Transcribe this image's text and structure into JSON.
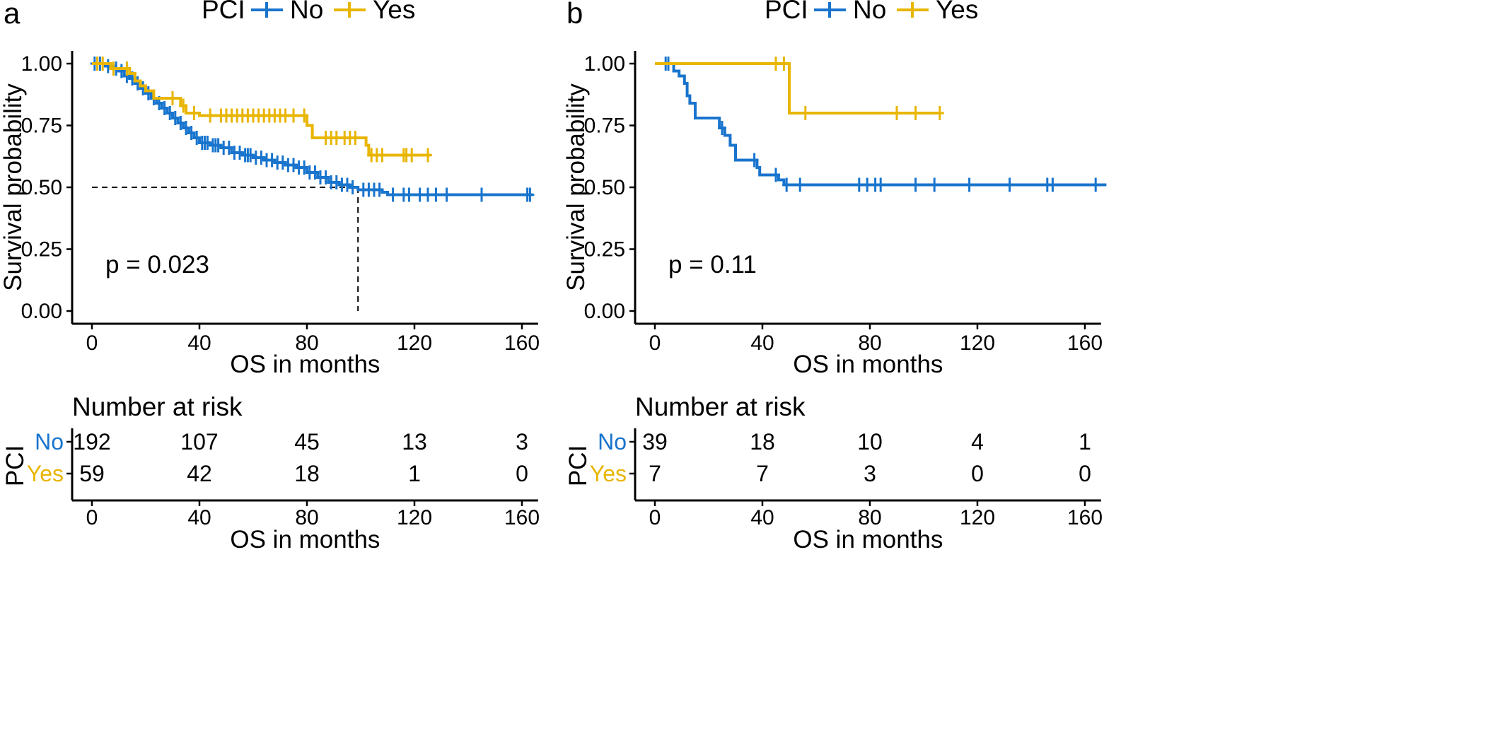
{
  "colors": {
    "No": "#1874CD",
    "Yes": "#E8B500"
  },
  "panels": [
    {
      "letter": "a",
      "legend": {
        "title": "PCI",
        "labels": [
          "No",
          "Yes"
        ]
      },
      "pvalue_text": "p = 0.023",
      "risk_table": {
        "title": "Number at risk",
        "strata_axis_label": "PCI",
        "strata": [
          "No",
          "Yes"
        ],
        "times": [
          0,
          40,
          80,
          120,
          160
        ],
        "counts": {
          "No": [
            "192",
            "107",
            "45",
            "13",
            "3"
          ],
          "Yes": [
            "59",
            "42",
            "18",
            "1",
            "0"
          ]
        },
        "x_ticks": [
          "0",
          "40",
          "80",
          "120",
          "160"
        ],
        "xlabel": "OS in months"
      }
    },
    {
      "letter": "b",
      "legend": {
        "title": "PCI",
        "labels": [
          "No",
          "Yes"
        ]
      },
      "pvalue_text": "p = 0.11",
      "risk_table": {
        "title": "Number at risk",
        "strata_axis_label": "PCI",
        "strata": [
          "No",
          "Yes"
        ],
        "times": [
          0,
          40,
          80,
          120,
          160
        ],
        "counts": {
          "No": [
            "39",
            "18",
            "10",
            "4",
            "1"
          ],
          "Yes": [
            "7",
            "7",
            "3",
            "0",
            "0"
          ]
        },
        "x_ticks": [
          "0",
          "40",
          "80",
          "120",
          "160"
        ],
        "xlabel": "OS in months"
      }
    }
  ],
  "chart_data": [
    {
      "type": "line",
      "xlabel": "OS in months",
      "ylabel": "Survival probability",
      "xlim": [
        -8,
        166
      ],
      "ylim": [
        -0.05,
        1.05
      ],
      "x_ticks": [
        0,
        40,
        80,
        120,
        160
      ],
      "y_ticks": [
        0,
        0.25,
        0.5,
        0.75,
        1.0
      ],
      "y_tick_labels": [
        "0.00",
        "0.25",
        "0.50",
        "0.75",
        "1.00"
      ],
      "x_tick_labels": [
        "0",
        "40",
        "80",
        "120",
        "160"
      ],
      "median_line": {
        "x": 99,
        "y": 0.5
      },
      "series": [
        {
          "name": "No",
          "color": "#1874CD",
          "steps": [
            [
              0,
              1.0
            ],
            [
              5,
              0.99
            ],
            [
              8,
              0.98
            ],
            [
              10,
              0.97
            ],
            [
              12,
              0.95
            ],
            [
              14,
              0.94
            ],
            [
              16,
              0.92
            ],
            [
              18,
              0.9
            ],
            [
              20,
              0.88
            ],
            [
              22,
              0.86
            ],
            [
              24,
              0.84
            ],
            [
              26,
              0.82
            ],
            [
              28,
              0.8
            ],
            [
              30,
              0.78
            ],
            [
              32,
              0.76
            ],
            [
              34,
              0.74
            ],
            [
              36,
              0.72
            ],
            [
              38,
              0.7
            ],
            [
              40,
              0.68
            ],
            [
              44,
              0.67
            ],
            [
              48,
              0.66
            ],
            [
              52,
              0.64
            ],
            [
              56,
              0.63
            ],
            [
              60,
              0.62
            ],
            [
              64,
              0.61
            ],
            [
              68,
              0.6
            ],
            [
              72,
              0.59
            ],
            [
              76,
              0.58
            ],
            [
              80,
              0.56
            ],
            [
              84,
              0.54
            ],
            [
              88,
              0.52
            ],
            [
              92,
              0.51
            ],
            [
              96,
              0.5
            ],
            [
              99,
              0.49
            ],
            [
              108,
              0.48
            ],
            [
              110,
              0.47
            ],
            [
              164,
              0.47
            ]
          ],
          "censor_x": [
            1,
            3,
            6,
            9,
            11,
            13,
            15,
            17,
            19,
            21,
            23,
            25,
            27,
            29,
            31,
            33,
            35,
            37,
            39,
            41,
            42,
            43,
            45,
            46,
            47,
            49,
            51,
            53,
            55,
            57,
            58,
            59,
            61,
            63,
            65,
            67,
            69,
            71,
            73,
            75,
            77,
            79,
            81,
            83,
            85,
            87,
            89,
            91,
            93,
            95,
            97,
            101,
            103,
            105,
            107,
            112,
            116,
            118,
            122,
            125,
            128,
            132,
            145,
            162,
            163
          ]
        },
        {
          "name": "Yes",
          "color": "#E8B500",
          "steps": [
            [
              0,
              1.0
            ],
            [
              7,
              0.98
            ],
            [
              14,
              0.96
            ],
            [
              16,
              0.93
            ],
            [
              18,
              0.91
            ],
            [
              20,
              0.89
            ],
            [
              23,
              0.86
            ],
            [
              33,
              0.83
            ],
            [
              35,
              0.8
            ],
            [
              40,
              0.79
            ],
            [
              80,
              0.75
            ],
            [
              82,
              0.7
            ],
            [
              102,
              0.67
            ],
            [
              103,
              0.63
            ],
            [
              126,
              0.63
            ]
          ],
          "censor_x": [
            2,
            4,
            8,
            13,
            30,
            34,
            38,
            44,
            48,
            50,
            52,
            54,
            56,
            58,
            60,
            62,
            64,
            66,
            68,
            70,
            72,
            75,
            79,
            87,
            89,
            91,
            94,
            96,
            98,
            104,
            106,
            108,
            116,
            117,
            119,
            125
          ]
        }
      ]
    },
    {
      "type": "line",
      "xlabel": "OS in months",
      "ylabel": "Survival probability",
      "xlim": [
        -8,
        166
      ],
      "ylim": [
        -0.05,
        1.05
      ],
      "x_ticks": [
        0,
        40,
        80,
        120,
        160
      ],
      "y_ticks": [
        0,
        0.25,
        0.5,
        0.75,
        1.0
      ],
      "y_tick_labels": [
        "0.00",
        "0.25",
        "0.50",
        "0.75",
        "1.00"
      ],
      "x_tick_labels": [
        "0",
        "40",
        "80",
        "120",
        "160"
      ],
      "series": [
        {
          "name": "No",
          "color": "#1874CD",
          "steps": [
            [
              0,
              1.0
            ],
            [
              7,
              0.97
            ],
            [
              9,
              0.95
            ],
            [
              11,
              0.92
            ],
            [
              12,
              0.87
            ],
            [
              13,
              0.84
            ],
            [
              15,
              0.78
            ],
            [
              24,
              0.74
            ],
            [
              26,
              0.71
            ],
            [
              28,
              0.67
            ],
            [
              30,
              0.61
            ],
            [
              38,
              0.58
            ],
            [
              39,
              0.55
            ],
            [
              46,
              0.53
            ],
            [
              48,
              0.51
            ],
            [
              168,
              0.51
            ]
          ],
          "censor_x": [
            4,
            5,
            25,
            37,
            45,
            49,
            54,
            76,
            79,
            82,
            84,
            97,
            104,
            117,
            132,
            146,
            148,
            164
          ]
        },
        {
          "name": "Yes",
          "color": "#E8B500",
          "steps": [
            [
              0,
              1.0
            ],
            [
              50,
              0.8
            ],
            [
              106,
              0.8
            ]
          ],
          "censor_x": [
            45,
            48,
            56,
            90,
            97,
            106
          ]
        }
      ]
    }
  ]
}
